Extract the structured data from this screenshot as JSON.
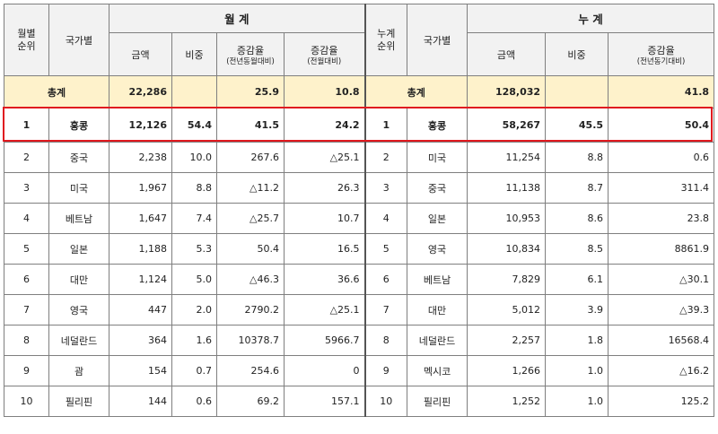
{
  "header": {
    "rank_month": "월별\n순위",
    "country": "국가별",
    "monthly_group": "월 계",
    "rank_cum": "누계\n순위",
    "cumulative_group": "누 계",
    "amount": "금액",
    "share": "비중",
    "change": "증감율",
    "change_sub_yoy": "(전년동월대비)",
    "change_sub_mom": "(전월대비)",
    "change_sub_cum": "(전년동기대비)"
  },
  "total": {
    "label": "총계",
    "m_amount": "22,286",
    "m_share": "",
    "m_yoy": "25.9",
    "m_mom": "10.8",
    "c_label": "총계",
    "c_amount": "128,032",
    "c_share": "",
    "c_yoy": "41.8"
  },
  "rows": [
    {
      "m_rank": "1",
      "m_country": "홍콩",
      "m_amount": "12,126",
      "m_share": "54.4",
      "m_yoy": "41.5",
      "m_mom": "24.2",
      "c_rank": "1",
      "c_country": "홍콩",
      "c_amount": "58,267",
      "c_share": "45.5",
      "c_yoy": "50.4"
    },
    {
      "m_rank": "2",
      "m_country": "중국",
      "m_amount": "2,238",
      "m_share": "10.0",
      "m_yoy": "267.6",
      "m_mom": "△25.1",
      "c_rank": "2",
      "c_country": "미국",
      "c_amount": "11,254",
      "c_share": "8.8",
      "c_yoy": "0.6"
    },
    {
      "m_rank": "3",
      "m_country": "미국",
      "m_amount": "1,967",
      "m_share": "8.8",
      "m_yoy": "△11.2",
      "m_mom": "26.3",
      "c_rank": "3",
      "c_country": "중국",
      "c_amount": "11,138",
      "c_share": "8.7",
      "c_yoy": "311.4"
    },
    {
      "m_rank": "4",
      "m_country": "베트남",
      "m_amount": "1,647",
      "m_share": "7.4",
      "m_yoy": "△25.7",
      "m_mom": "10.7",
      "c_rank": "4",
      "c_country": "일본",
      "c_amount": "10,953",
      "c_share": "8.6",
      "c_yoy": "23.8"
    },
    {
      "m_rank": "5",
      "m_country": "일본",
      "m_amount": "1,188",
      "m_share": "5.3",
      "m_yoy": "50.4",
      "m_mom": "16.5",
      "c_rank": "5",
      "c_country": "영국",
      "c_amount": "10,834",
      "c_share": "8.5",
      "c_yoy": "8861.9"
    },
    {
      "m_rank": "6",
      "m_country": "대만",
      "m_amount": "1,124",
      "m_share": "5.0",
      "m_yoy": "△46.3",
      "m_mom": "36.6",
      "c_rank": "6",
      "c_country": "베트남",
      "c_amount": "7,829",
      "c_share": "6.1",
      "c_yoy": "△30.1"
    },
    {
      "m_rank": "7",
      "m_country": "영국",
      "m_amount": "447",
      "m_share": "2.0",
      "m_yoy": "2790.2",
      "m_mom": "△25.1",
      "c_rank": "7",
      "c_country": "대만",
      "c_amount": "5,012",
      "c_share": "3.9",
      "c_yoy": "△39.3"
    },
    {
      "m_rank": "8",
      "m_country": "네덜란드",
      "m_amount": "364",
      "m_share": "1.6",
      "m_yoy": "10378.7",
      "m_mom": "5966.7",
      "c_rank": "8",
      "c_country": "네덜란드",
      "c_amount": "2,257",
      "c_share": "1.8",
      "c_yoy": "16568.4"
    },
    {
      "m_rank": "9",
      "m_country": "괌",
      "m_amount": "154",
      "m_share": "0.7",
      "m_yoy": "254.6",
      "m_mom": "0",
      "c_rank": "9",
      "c_country": "멕시코",
      "c_amount": "1,266",
      "c_share": "1.0",
      "c_yoy": "△16.2"
    },
    {
      "m_rank": "10",
      "m_country": "필리핀",
      "m_amount": "144",
      "m_share": "0.6",
      "m_yoy": "69.2",
      "m_mom": "157.1",
      "c_rank": "10",
      "c_country": "필리핀",
      "c_amount": "1,252",
      "c_share": "1.0",
      "c_yoy": "125.2"
    }
  ],
  "colors": {
    "header_bg": "#f2f2f2",
    "total_row_bg": "#fef2cb",
    "highlight_border": "#e0191f"
  }
}
